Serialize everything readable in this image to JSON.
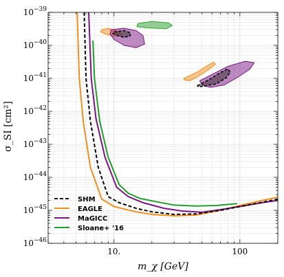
{
  "chart_data": {
    "type": "line",
    "title": "",
    "xlabel": "m_χ [GeV]",
    "ylabel": "σ_SI [cm²]",
    "x_scale": "log",
    "y_scale": "log",
    "xlim": [
      3,
      200
    ],
    "ylim": [
      1e-46,
      1e-39
    ],
    "grid": true,
    "legend_position": "bottom-left",
    "x_ticks": [
      {
        "value": 10,
        "label": "10."
      },
      {
        "value": 100,
        "label": "100"
      }
    ],
    "y_ticks": [
      {
        "value": 1e-39,
        "base": "10",
        "exp": "−39"
      },
      {
        "value": 1e-40,
        "base": "10",
        "exp": "−40"
      },
      {
        "value": 1e-41,
        "base": "10",
        "exp": "−41"
      },
      {
        "value": 1e-42,
        "base": "10",
        "exp": "−42"
      },
      {
        "value": 1e-43,
        "base": "10",
        "exp": "−43"
      },
      {
        "value": 1e-44,
        "base": "10",
        "exp": "−44"
      },
      {
        "value": 1e-45,
        "base": "10",
        "exp": "−45"
      },
      {
        "value": 1e-46,
        "base": "10",
        "exp": "−46"
      }
    ],
    "series": [
      {
        "name": "SHM",
        "color": "#000000",
        "dash": true,
        "points": [
          [
            5.8,
            1e-39
          ],
          [
            6.0,
            1e-41
          ],
          [
            6.5,
            5e-43
          ],
          [
            7.5,
            2e-44
          ],
          [
            9,
            2.6e-45
          ],
          [
            11,
            1.7e-45
          ],
          [
            15,
            1.15e-45
          ],
          [
            20,
            9e-46
          ],
          [
            30,
            7.5e-46
          ],
          [
            45,
            7.8e-46
          ],
          [
            70,
            1e-45
          ],
          [
            100,
            1.3e-45
          ],
          [
            150,
            1.75e-45
          ],
          [
            200,
            2.2e-45
          ]
        ]
      },
      {
        "name": "EAGLE",
        "color": "#f28e1c",
        "dash": false,
        "points": [
          [
            5.1,
            1e-39
          ],
          [
            5.3,
            1e-41
          ],
          [
            5.7,
            5e-43
          ],
          [
            6.5,
            2e-44
          ],
          [
            8,
            2.2e-45
          ],
          [
            10,
            1.3e-45
          ],
          [
            15,
            9e-46
          ],
          [
            20,
            7.5e-46
          ],
          [
            30,
            6.8e-46
          ],
          [
            45,
            7.2e-46
          ],
          [
            70,
            1e-45
          ],
          [
            100,
            1.4e-45
          ],
          [
            150,
            2e-45
          ],
          [
            200,
            2.5e-45
          ]
        ]
      },
      {
        "name": "MaGICC",
        "color": "#7b1583",
        "dash": false,
        "points": [
          [
            6.3,
            1e-39
          ],
          [
            6.6,
            1e-41
          ],
          [
            7.2,
            6e-43
          ],
          [
            8.5,
            4e-44
          ],
          [
            10.5,
            5e-45
          ],
          [
            13,
            2.6e-45
          ],
          [
            17,
            1.7e-45
          ],
          [
            25,
            1.15e-45
          ],
          [
            35,
            9.5e-46
          ],
          [
            50,
            8.8e-46
          ],
          [
            70,
            1.05e-45
          ],
          [
            100,
            1.3e-45
          ],
          [
            150,
            1.7e-45
          ],
          [
            200,
            2e-45
          ]
        ]
      },
      {
        "name": "Sloane+ '16",
        "color": "#1f9e2c",
        "dash": false,
        "points": [
          [
            6.8,
            1.4e-40
          ],
          [
            7.0,
            1e-41
          ],
          [
            7.7,
            5e-43
          ],
          [
            9,
            4e-44
          ],
          [
            11,
            6e-45
          ],
          [
            13,
            3.3e-45
          ],
          [
            16,
            2.3e-45
          ],
          [
            22,
            1.8e-45
          ],
          [
            30,
            1.45e-45
          ],
          [
            45,
            1.35e-45
          ],
          [
            65,
            1.4e-45
          ],
          [
            80,
            1.5e-45
          ],
          [
            95,
            1.6e-45
          ]
        ]
      }
    ],
    "regions": [
      {
        "color": "#f28e1c",
        "points": [
          [
            8,
            3e-40
          ],
          [
            9,
            3.3e-40
          ],
          [
            11,
            2.6e-40
          ],
          [
            11.5,
            2e-40
          ],
          [
            10,
            1.9e-40
          ],
          [
            8.5,
            2.2e-40
          ],
          [
            7.8,
            2.6e-40
          ]
        ]
      },
      {
        "color": "#7b1583",
        "points": [
          [
            9.5,
            3e-40
          ],
          [
            12,
            3.3e-40
          ],
          [
            15,
            2.8e-40
          ],
          [
            17,
            2e-40
          ],
          [
            17.5,
            1.1e-40
          ],
          [
            15,
            8.5e-41
          ],
          [
            12,
            1e-40
          ],
          [
            10,
            1.5e-40
          ],
          [
            9.3,
            2.2e-40
          ]
        ]
      },
      {
        "color": "#2ca02c",
        "points": [
          [
            15.5,
            4.6e-40
          ],
          [
            20,
            5.3e-40
          ],
          [
            27,
            4.8e-40
          ],
          [
            29,
            4e-40
          ],
          [
            26,
            3.2e-40
          ],
          [
            18,
            3.4e-40
          ],
          [
            15.2,
            3.7e-40
          ]
        ]
      },
      {
        "color": "#f28e1c",
        "points": [
          [
            36,
            1e-41
          ],
          [
            45,
            1.5e-41
          ],
          [
            55,
            2.4e-41
          ],
          [
            62,
            3.1e-41
          ],
          [
            64,
            2.7e-41
          ],
          [
            56,
            1.8e-41
          ],
          [
            46,
            1.1e-41
          ],
          [
            40,
            8.5e-42
          ],
          [
            36,
            9e-42
          ]
        ]
      },
      {
        "color": "#7b1583",
        "points": [
          [
            48,
            8.5e-42
          ],
          [
            60,
            1.3e-41
          ],
          [
            80,
            2.3e-41
          ],
          [
            110,
            3.3e-41
          ],
          [
            130,
            3e-41
          ],
          [
            120,
            1.9e-41
          ],
          [
            95,
            1.05e-41
          ],
          [
            75,
            6.3e-42
          ],
          [
            58,
            5.3e-42
          ],
          [
            50,
            6.3e-42
          ]
        ]
      },
      {
        "color": "#222222",
        "dash": true,
        "points": [
          [
            10,
            2.55e-40
          ],
          [
            12,
            2.8e-40
          ],
          [
            13.5,
            2.4e-40
          ],
          [
            13.4,
            1.9e-40
          ],
          [
            12,
            1.75e-40
          ],
          [
            10.6,
            2e-40
          ],
          [
            9.8,
            2.3e-40
          ]
        ]
      },
      {
        "color": "#222222",
        "dash": true,
        "points": [
          [
            46,
            6e-42
          ],
          [
            55,
            8.5e-42
          ],
          [
            68,
            1.4e-41
          ],
          [
            80,
            1.95e-41
          ],
          [
            84,
            1.55e-41
          ],
          [
            78,
            1.05e-41
          ],
          [
            65,
            6.8e-42
          ],
          [
            52,
            5.8e-42
          ],
          [
            46.5,
            5.6e-42
          ]
        ]
      }
    ]
  }
}
